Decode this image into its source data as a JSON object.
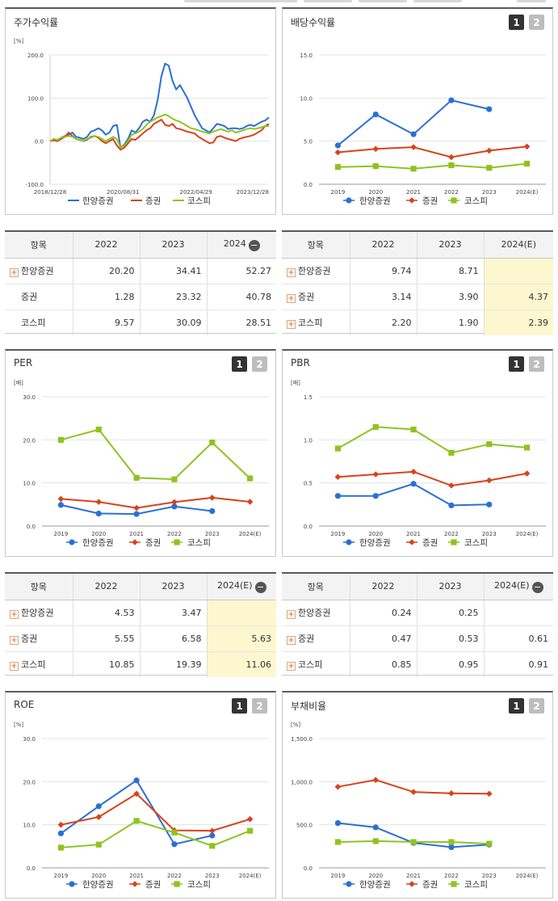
{
  "colors": {
    "series1": "#2b6fd6",
    "series2": "#d9421b",
    "series3": "#8fc320"
  },
  "legend": [
    "한양증권",
    "증권",
    "코스피"
  ],
  "panels": [
    {
      "id": "stock-return",
      "title": "주가수익률",
      "buttons": [],
      "chart_data": {
        "type": "line",
        "unit": "[%]",
        "ylim": [
          -100,
          200
        ],
        "yticks": [
          "200.0",
          "100.0",
          "0.0",
          "-100.0"
        ],
        "xticks": [
          "2018/12/28",
          "2020/08/31",
          "2022/04/29",
          "2023/12/28"
        ],
        "series": [
          {
            "name": "한양증권",
            "values": [
              0,
              5,
              3,
              8,
              12,
              15,
              20,
              10,
              8,
              5,
              10,
              22,
              25,
              30,
              25,
              15,
              20,
              35,
              38,
              -15,
              -8,
              5,
              25,
              20,
              30,
              45,
              50,
              45,
              60,
              95,
              150,
              180,
              175,
              140,
              120,
              130,
              115,
              100,
              80,
              60,
              45,
              30,
              25,
              20,
              30,
              40,
              38,
              35,
              28,
              30,
              30,
              28,
              30,
              35,
              38,
              35,
              40,
              45,
              48,
              55
            ]
          },
          {
            "name": "증권",
            "values": [
              0,
              2,
              0,
              5,
              10,
              20,
              12,
              5,
              3,
              0,
              3,
              10,
              12,
              8,
              0,
              -5,
              0,
              5,
              -10,
              -20,
              -15,
              -5,
              5,
              3,
              10,
              18,
              25,
              30,
              40,
              45,
              50,
              38,
              35,
              40,
              30,
              28,
              25,
              22,
              20,
              18,
              10,
              5,
              0,
              -5,
              -3,
              10,
              12,
              8,
              5,
              3,
              0,
              5,
              8,
              10,
              12,
              15,
              20,
              25,
              35,
              40
            ]
          },
          {
            "name": "코스피",
            "values": [
              0,
              5,
              3,
              8,
              10,
              12,
              10,
              5,
              3,
              0,
              5,
              8,
              12,
              10,
              5,
              0,
              5,
              10,
              5,
              -15,
              -10,
              0,
              15,
              18,
              22,
              28,
              38,
              45,
              50,
              55,
              58,
              62,
              58,
              52,
              48,
              45,
              40,
              35,
              30,
              28,
              25,
              22,
              20,
              18,
              22,
              25,
              28,
              25,
              22,
              25,
              20,
              22,
              25,
              28,
              30,
              28,
              30,
              32,
              35,
              35
            ]
          }
        ]
      }
    },
    {
      "id": "dividend-yield",
      "title": "배당수익률",
      "buttons": [
        "1",
        "2"
      ],
      "chart_data": {
        "type": "line",
        "unit": "",
        "ylim": [
          0,
          15
        ],
        "yticks": [
          "15.0",
          "10.0",
          "5.0",
          "0.0"
        ],
        "categories": [
          "2019",
          "2020",
          "2021",
          "2022",
          "2023",
          "2024(E)"
        ],
        "series": [
          {
            "name": "한양증권",
            "values": [
              4.5,
              8.1,
              5.8,
              9.74,
              8.71,
              null
            ]
          },
          {
            "name": "증권",
            "values": [
              3.7,
              4.1,
              4.3,
              3.14,
              3.9,
              4.37
            ]
          },
          {
            "name": "코스피",
            "values": [
              2.0,
              2.1,
              1.8,
              2.2,
              1.9,
              2.39
            ]
          }
        ]
      }
    },
    {
      "id": "per",
      "title": "PER",
      "buttons": [
        "1",
        "2"
      ],
      "chart_data": {
        "type": "line",
        "unit": "[배]",
        "ylim": [
          0,
          30
        ],
        "yticks": [
          "30.0",
          "20.0",
          "10.0",
          "0.0"
        ],
        "categories": [
          "2019",
          "2020",
          "2021",
          "2022",
          "2023",
          "2024(E)"
        ],
        "series": [
          {
            "name": "한양증권",
            "values": [
              4.9,
              2.9,
              2.8,
              4.53,
              3.47,
              null
            ]
          },
          {
            "name": "증권",
            "values": [
              6.3,
              5.6,
              4.2,
              5.55,
              6.58,
              5.63
            ]
          },
          {
            "name": "코스피",
            "values": [
              20.0,
              22.4,
              11.2,
              10.85,
              19.39,
              11.06
            ]
          }
        ]
      }
    },
    {
      "id": "pbr",
      "title": "PBR",
      "buttons": [
        "1",
        "2"
      ],
      "chart_data": {
        "type": "line",
        "unit": "[배]",
        "ylim": [
          0,
          1.5
        ],
        "yticks": [
          "1.5",
          "1.0",
          "0.5",
          "0.0"
        ],
        "categories": [
          "2019",
          "2020",
          "2021",
          "2022",
          "2023",
          "2024(E)"
        ],
        "series": [
          {
            "name": "한양증권",
            "values": [
              0.35,
              0.35,
              0.49,
              0.24,
              0.25,
              null
            ]
          },
          {
            "name": "증권",
            "values": [
              0.57,
              0.6,
              0.63,
              0.47,
              0.53,
              0.61
            ]
          },
          {
            "name": "코스피",
            "values": [
              0.9,
              1.15,
              1.12,
              0.85,
              0.95,
              0.91
            ]
          }
        ]
      }
    },
    {
      "id": "roe",
      "title": "ROE",
      "buttons": [
        "1",
        "2"
      ],
      "chart_data": {
        "type": "line",
        "unit": "[%]",
        "ylim": [
          0,
          30
        ],
        "yticks": [
          "30.0",
          "20.0",
          "10.0",
          "0.0"
        ],
        "categories": [
          "2019",
          "2020",
          "2021",
          "2022",
          "2023",
          "2024(E)"
        ],
        "series": [
          {
            "name": "한양증권",
            "values": [
              8.0,
              14.3,
              20.3,
              5.5,
              7.5,
              null
            ]
          },
          {
            "name": "증권",
            "values": [
              10.0,
              11.8,
              17.2,
              8.7,
              8.6,
              11.3
            ]
          },
          {
            "name": "코스피",
            "values": [
              4.7,
              5.4,
              10.9,
              8.2,
              5.1,
              8.6
            ]
          }
        ]
      }
    },
    {
      "id": "debt-ratio",
      "title": "부채비율",
      "buttons": [
        "1",
        "2"
      ],
      "chart_data": {
        "type": "line",
        "unit": "[%]",
        "ylim": [
          0,
          1500
        ],
        "yticks": [
          "1,500.0",
          "1,000.0",
          "500.0",
          "0.0"
        ],
        "categories": [
          "2019",
          "2020",
          "2021",
          "2022",
          "2023",
          "2024(E)"
        ],
        "series": [
          {
            "name": "한양증권",
            "values": [
              520,
              470,
              290,
              240,
              270,
              null
            ]
          },
          {
            "name": "증권",
            "values": [
              940,
              1020,
              880,
              865,
              860,
              null
            ]
          },
          {
            "name": "코스피",
            "values": [
              300,
              310,
              300,
              300,
              280,
              null
            ]
          }
        ]
      }
    }
  ],
  "tables": [
    {
      "id": "stock-return-table",
      "headers": [
        "항목",
        "2022",
        "2023",
        "2024"
      ],
      "collapse_col": 3,
      "estimate_col": null,
      "rows": [
        {
          "label": "한양증권",
          "plus": true,
          "values": [
            "20.20",
            "34.41",
            "52.27"
          ]
        },
        {
          "label": "증권",
          "plus": false,
          "values": [
            "1.28",
            "23.32",
            "40.78"
          ]
        },
        {
          "label": "코스피",
          "plus": false,
          "values": [
            "9.57",
            "30.09",
            "28.51"
          ]
        }
      ]
    },
    {
      "id": "dividend-table",
      "headers": [
        "항목",
        "2022",
        "2023",
        "2024(E)"
      ],
      "collapse_col": null,
      "estimate_col": 3,
      "rows": [
        {
          "label": "한양증권",
          "plus": true,
          "values": [
            "9.74",
            "8.71",
            ""
          ]
        },
        {
          "label": "증권",
          "plus": true,
          "values": [
            "3.14",
            "3.90",
            "4.37"
          ]
        },
        {
          "label": "코스피",
          "plus": true,
          "values": [
            "2.20",
            "1.90",
            "2.39"
          ]
        }
      ]
    },
    {
      "id": "per-table",
      "headers": [
        "항목",
        "2022",
        "2023",
        "2024(E)"
      ],
      "collapse_col": 3,
      "estimate_col": 3,
      "rows": [
        {
          "label": "한양증권",
          "plus": true,
          "values": [
            "4.53",
            "3.47",
            ""
          ]
        },
        {
          "label": "증권",
          "plus": true,
          "values": [
            "5.55",
            "6.58",
            "5.63"
          ]
        },
        {
          "label": "코스피",
          "plus": true,
          "values": [
            "10.85",
            "19.39",
            "11.06"
          ]
        }
      ]
    },
    {
      "id": "pbr-table",
      "headers": [
        "항목",
        "2022",
        "2023",
        "2024(E)"
      ],
      "collapse_col": 3,
      "estimate_col": null,
      "rows": [
        {
          "label": "한양증권",
          "plus": true,
          "values": [
            "0.24",
            "0.25",
            ""
          ]
        },
        {
          "label": "증권",
          "plus": true,
          "values": [
            "0.47",
            "0.53",
            "0.61"
          ]
        },
        {
          "label": "코스피",
          "plus": true,
          "values": [
            "0.85",
            "0.95",
            "0.91"
          ]
        }
      ]
    }
  ]
}
